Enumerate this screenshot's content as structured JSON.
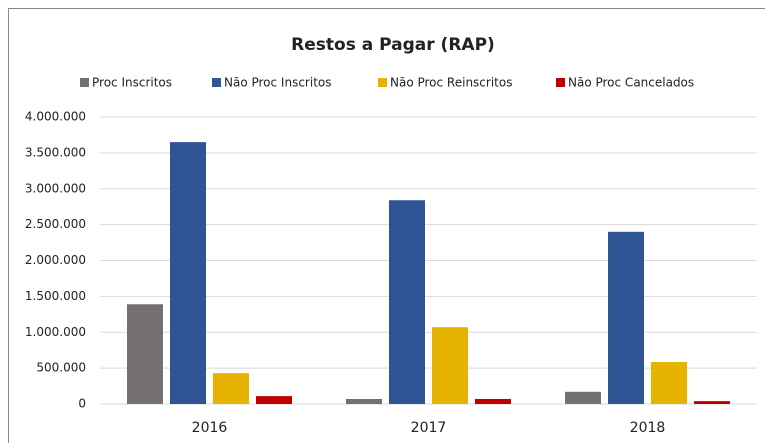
{
  "chart_data": {
    "type": "bar",
    "title": "Restos a Pagar (RAP)",
    "categories": [
      "2016",
      "2017",
      "2018"
    ],
    "series": [
      {
        "name": "Proc Inscritos",
        "color": "#767171",
        "values": [
          1390000,
          70000,
          170000
        ]
      },
      {
        "name": "Não Proc Inscritos",
        "color": "#2f5597",
        "values": [
          3650000,
          2840000,
          2400000
        ]
      },
      {
        "name": "Não Proc Reinscritos",
        "color": "#e6b400",
        "values": [
          430000,
          1070000,
          585000
        ]
      },
      {
        "name": "Não Proc Cancelados",
        "color": "#c00000",
        "values": [
          110000,
          70000,
          40000
        ]
      }
    ],
    "ylim": [
      0,
      4000000
    ],
    "yticks": [
      0,
      {
        "value": 500000,
        "label": "500.000"
      },
      {
        "value": 1000000,
        "label": "1.000.000"
      },
      {
        "value": 1500000,
        "label": "1.500.000"
      },
      {
        "value": 2000000,
        "label": "2.000.000"
      },
      {
        "value": 2500000,
        "label": "2.500.000"
      },
      {
        "value": 3000000,
        "label": "3.000.000"
      },
      {
        "value": 3500000,
        "label": "3.500.000"
      },
      {
        "value": 4000000,
        "label": "4.000.000"
      }
    ],
    "grid": true,
    "legend": "top"
  }
}
